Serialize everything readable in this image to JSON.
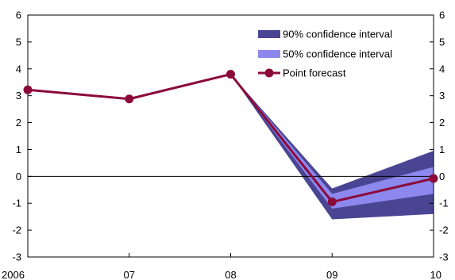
{
  "chart_data": {
    "type": "line",
    "title": "",
    "xlabel": "",
    "ylabel": "",
    "categories": [
      "2006",
      "07",
      "08",
      "09",
      "10"
    ],
    "ylim": [
      -3,
      6
    ],
    "yticks": [
      -3,
      -2,
      -1,
      0,
      1,
      2,
      3,
      4,
      5,
      6
    ],
    "y_axis_sides": [
      "left",
      "right"
    ],
    "zero_line": true,
    "grid": false,
    "legend_position": "top-right",
    "series": [
      {
        "name": "90% confidence interval",
        "kind": "band",
        "color": "#4a4593",
        "lower": [
          null,
          null,
          3.8,
          -1.6,
          -1.4
        ],
        "upper": [
          null,
          null,
          3.8,
          -0.45,
          0.95
        ]
      },
      {
        "name": "50% confidence interval",
        "kind": "band",
        "color": "#8c88ee",
        "lower": [
          null,
          null,
          3.8,
          -1.2,
          -0.65
        ],
        "upper": [
          null,
          null,
          3.8,
          -0.65,
          0.35
        ]
      },
      {
        "name": "Point forecast",
        "kind": "line",
        "color": "#8b0a3a",
        "values": [
          3.22,
          2.88,
          3.8,
          -0.95,
          -0.08
        ]
      }
    ]
  }
}
